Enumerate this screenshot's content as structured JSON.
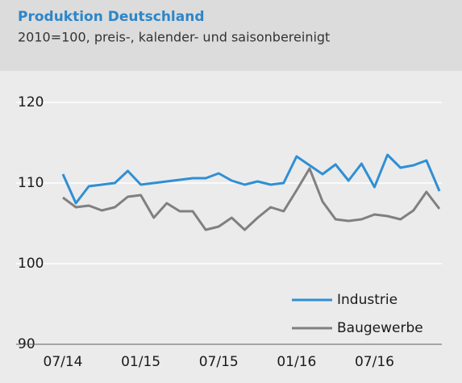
{
  "chart_data": {
    "type": "line",
    "title": "Produktion Deutschland",
    "subtitle": "2010=100, preis-, kalender- und saisonbereinigt",
    "categories": [
      "07/14",
      null,
      null,
      null,
      null,
      null,
      "01/15",
      null,
      null,
      null,
      null,
      null,
      "07/15",
      null,
      null,
      null,
      null,
      null,
      "01/16",
      null,
      null,
      null,
      null,
      null,
      "07/16",
      null,
      null,
      null,
      null,
      null
    ],
    "series": [
      {
        "name": "Industrie",
        "color": "#2f8fd5",
        "values": [
          111.1,
          107.5,
          109.6,
          109.8,
          110.0,
          111.5,
          109.8,
          110.0,
          110.2,
          110.4,
          110.6,
          110.6,
          111.2,
          110.3,
          109.8,
          110.2,
          109.8,
          110.0,
          113.3,
          112.2,
          111.1,
          112.3,
          110.3,
          112.4,
          109.5,
          113.5,
          111.9,
          112.2,
          112.8,
          109.0
        ]
      },
      {
        "name": "Baugewerbe",
        "color": "#808080",
        "values": [
          108.2,
          107.0,
          107.2,
          106.6,
          107.0,
          108.3,
          108.5,
          105.7,
          107.5,
          106.5,
          106.5,
          104.2,
          104.6,
          105.7,
          104.2,
          105.7,
          107.0,
          106.5,
          109.1,
          111.8,
          107.7,
          105.5,
          105.3,
          105.5,
          106.1,
          105.9,
          105.5,
          106.6,
          108.9,
          106.8
        ]
      }
    ],
    "ylim": [
      90,
      120
    ],
    "yticks": [
      90,
      100,
      110,
      120
    ],
    "grid": true,
    "legend": "lower right"
  }
}
